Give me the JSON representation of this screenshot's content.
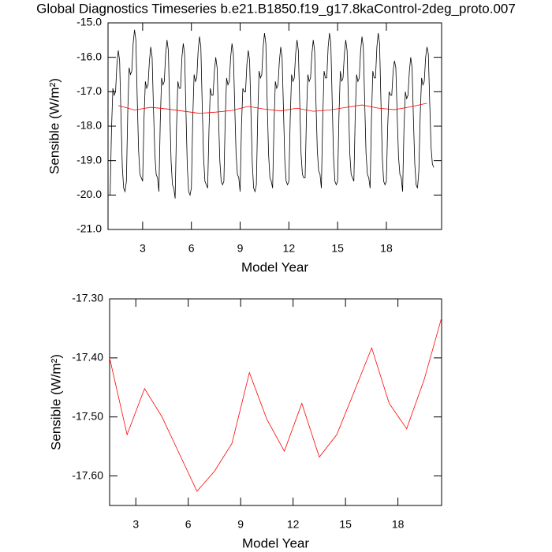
{
  "chart_data": [
    {
      "type": "line",
      "title": "Global Diagnostics Timeseries b.e21.B1850.f19_g17.8kaControl-2deg_proto.007",
      "xlabel": "Model Year",
      "ylabel": "Sensible (W/m²)",
      "xlim": [
        0.87,
        21.4
      ],
      "xticks": [
        3,
        6,
        9,
        12,
        15,
        18
      ],
      "ylim": [
        -21,
        -15
      ],
      "yticks": [
        {
          "value": -21,
          "label": "-21.0"
        },
        {
          "value": -20,
          "label": "-20.0"
        },
        {
          "value": -19,
          "label": "-19.0"
        },
        {
          "value": -18,
          "label": "-18.0"
        },
        {
          "value": -17,
          "label": "-17.0"
        },
        {
          "value": -16,
          "label": "-16.0"
        },
        {
          "value": -15,
          "label": "-15.0"
        }
      ],
      "series": [
        {
          "color": "#000000",
          "x": [
            1,
            1.083,
            1.167,
            1.25,
            1.333,
            1.417,
            1.5,
            1.583,
            1.667,
            1.75,
            1.833,
            1.917,
            2,
            2.083,
            2.167,
            2.25,
            2.333,
            2.417,
            2.5,
            2.583,
            2.667,
            2.75,
            2.833,
            2.917,
            3,
            3.083,
            3.167,
            3.25,
            3.333,
            3.417,
            3.5,
            3.583,
            3.667,
            3.75,
            3.833,
            3.917,
            4,
            4.083,
            4.167,
            4.25,
            4.333,
            4.417,
            4.5,
            4.583,
            4.667,
            4.75,
            4.833,
            4.917,
            5,
            5.083,
            5.167,
            5.25,
            5.333,
            5.417,
            5.5,
            5.583,
            5.667,
            5.75,
            5.833,
            5.917,
            6,
            6.083,
            6.167,
            6.25,
            6.333,
            6.417,
            6.5,
            6.583,
            6.667,
            6.75,
            6.833,
            6.917,
            7,
            7.083,
            7.167,
            7.25,
            7.333,
            7.417,
            7.5,
            7.583,
            7.667,
            7.75,
            7.833,
            7.917,
            8,
            8.083,
            8.167,
            8.25,
            8.333,
            8.417,
            8.5,
            8.583,
            8.667,
            8.75,
            8.833,
            8.917,
            9,
            9.083,
            9.167,
            9.25,
            9.333,
            9.417,
            9.5,
            9.583,
            9.667,
            9.75,
            9.833,
            9.917,
            10,
            10.083,
            10.167,
            10.25,
            10.333,
            10.417,
            10.5,
            10.583,
            10.667,
            10.75,
            10.833,
            10.917,
            11,
            11.083,
            11.167,
            11.25,
            11.333,
            11.417,
            11.5,
            11.583,
            11.667,
            11.75,
            11.833,
            11.917,
            12,
            12.083,
            12.167,
            12.25,
            12.333,
            12.417,
            12.5,
            12.583,
            12.667,
            12.75,
            12.833,
            12.917,
            13,
            13.083,
            13.167,
            13.25,
            13.333,
            13.417,
            13.5,
            13.583,
            13.667,
            13.75,
            13.833,
            13.917,
            14,
            14.083,
            14.167,
            14.25,
            14.333,
            14.417,
            14.5,
            14.583,
            14.667,
            14.75,
            14.833,
            14.917,
            15,
            15.083,
            15.167,
            15.25,
            15.333,
            15.417,
            15.5,
            15.583,
            15.667,
            15.75,
            15.833,
            15.917,
            16,
            16.083,
            16.167,
            16.25,
            16.333,
            16.417,
            16.5,
            16.583,
            16.667,
            16.75,
            16.833,
            16.917,
            17,
            17.083,
            17.167,
            17.25,
            17.333,
            17.417,
            17.5,
            17.583,
            17.667,
            17.75,
            17.833,
            17.917,
            18,
            18.083,
            18.167,
            18.25,
            18.333,
            18.417,
            18.5,
            18.583,
            18.667,
            18.75,
            18.833,
            18.917,
            19,
            19.083,
            19.167,
            19.25,
            19.333,
            19.417,
            19.5,
            19.583,
            19.667,
            19.75,
            19.833,
            19.917,
            20,
            20.083,
            20.167,
            20.25,
            20.333,
            20.417,
            20.5,
            20.583,
            20.667,
            20.75,
            20.833,
            20.917
          ],
          "values": [
            -20.0,
            -18.1,
            -16.9,
            -17.1,
            -17.0,
            -16.2,
            -15.8,
            -16.1,
            -17.7,
            -19.2,
            -19.8,
            -19.9,
            -19.6,
            -17.6,
            -16.3,
            -16.5,
            -16.4,
            -15.6,
            -15.2,
            -15.5,
            -17.2,
            -18.7,
            -19.4,
            -19.5,
            -19.6,
            -17.8,
            -16.7,
            -16.9,
            -16.8,
            -16.1,
            -15.7,
            -16.0,
            -17.5,
            -18.8,
            -19.4,
            -19.5,
            -19.9,
            -17.9,
            -16.6,
            -16.8,
            -16.7,
            -15.9,
            -15.5,
            -15.8,
            -17.5,
            -19.0,
            -19.7,
            -19.8,
            -20.1,
            -18.1,
            -16.7,
            -16.9,
            -16.9,
            -16.0,
            -15.6,
            -15.9,
            -17.6,
            -19.2,
            -19.9,
            -20.0,
            -19.8,
            -17.8,
            -16.5,
            -16.7,
            -16.6,
            -15.8,
            -15.4,
            -15.7,
            -17.4,
            -18.9,
            -19.6,
            -19.7,
            -19.8,
            -18.1,
            -16.9,
            -17.1,
            -17.1,
            -16.4,
            -16.0,
            -16.3,
            -17.7,
            -19.0,
            -19.6,
            -19.7,
            -19.6,
            -17.8,
            -16.6,
            -16.8,
            -16.7,
            -16.0,
            -15.6,
            -15.9,
            -17.4,
            -18.8,
            -19.4,
            -19.5,
            -19.9,
            -18.0,
            -16.9,
            -17.0,
            -17.0,
            -16.2,
            -15.8,
            -16.1,
            -17.6,
            -19.1,
            -19.8,
            -19.9,
            -19.7,
            -17.7,
            -16.4,
            -16.6,
            -16.5,
            -15.7,
            -15.3,
            -15.6,
            -17.3,
            -18.8,
            -19.5,
            -19.6,
            -19.8,
            -18.0,
            -16.7,
            -16.9,
            -16.8,
            -16.1,
            -15.7,
            -16.0,
            -17.5,
            -19.0,
            -19.6,
            -19.7,
            -19.6,
            -17.8,
            -16.5,
            -16.7,
            -16.6,
            -15.9,
            -15.5,
            -15.8,
            -17.3,
            -18.8,
            -19.4,
            -19.5,
            -19.5,
            -17.7,
            -16.5,
            -16.7,
            -16.6,
            -15.9,
            -15.5,
            -15.8,
            -17.3,
            -18.7,
            -19.3,
            -19.4,
            -19.8,
            -17.8,
            -16.4,
            -16.6,
            -16.6,
            -15.7,
            -15.3,
            -15.6,
            -17.3,
            -18.9,
            -19.6,
            -19.7,
            -19.6,
            -17.7,
            -16.4,
            -16.7,
            -16.6,
            -15.9,
            -15.5,
            -15.8,
            -17.3,
            -18.8,
            -19.4,
            -19.5,
            -19.6,
            -17.7,
            -16.5,
            -16.7,
            -16.6,
            -15.8,
            -15.4,
            -15.7,
            -17.3,
            -18.8,
            -19.4,
            -19.5,
            -19.8,
            -17.8,
            -16.4,
            -16.6,
            -16.6,
            -15.7,
            -15.3,
            -15.6,
            -17.3,
            -18.9,
            -19.6,
            -19.7,
            -19.6,
            -18.0,
            -17.0,
            -17.1,
            -17.1,
            -16.4,
            -16.1,
            -16.3,
            -17.7,
            -18.9,
            -19.4,
            -19.5,
            -19.9,
            -18.1,
            -17.0,
            -17.2,
            -17.1,
            -16.4,
            -16.0,
            -16.3,
            -17.8,
            -19.1,
            -19.7,
            -19.8,
            -19.3,
            -17.7,
            -16.6,
            -16.8,
            -16.7,
            -16.0,
            -15.7,
            -15.9,
            -17.3,
            -18.6,
            -19.1,
            -19.2
          ]
        },
        {
          "color": "#ff0000",
          "x": [
            1.5,
            2.5,
            3.5,
            4.5,
            5.5,
            6.5,
            7.5,
            8.5,
            9.5,
            10.5,
            11.5,
            12.5,
            13.5,
            14.5,
            15.5,
            16.5,
            17.5,
            18.5,
            19.5,
            20.5
          ],
          "values": [
            -17.4,
            -17.53,
            -17.452,
            -17.5,
            -17.563,
            -17.626,
            -17.592,
            -17.545,
            -17.425,
            -17.504,
            -17.558,
            -17.477,
            -17.568,
            -17.53,
            -17.457,
            -17.383,
            -17.477,
            -17.52,
            -17.437,
            -17.332
          ]
        }
      ]
    },
    {
      "type": "line",
      "xlabel": "Model Year",
      "ylabel": "Sensible (W/m²)",
      "xlim": [
        1.5,
        20.5
      ],
      "xticks": [
        3,
        6,
        9,
        12,
        15,
        18
      ],
      "ylim": [
        -17.65,
        -17.3
      ],
      "yticks": [
        {
          "value": -17.6,
          "label": "-17.60"
        },
        {
          "value": -17.5,
          "label": "-17.50"
        },
        {
          "value": -17.4,
          "label": "-17.40"
        },
        {
          "value": -17.3,
          "label": "-17.30"
        }
      ],
      "series": [
        {
          "color": "#ff0000",
          "x": [
            1.5,
            2.5,
            3.5,
            4.5,
            5.5,
            6.5,
            7.5,
            8.5,
            9.5,
            10.5,
            11.5,
            12.5,
            13.5,
            14.5,
            15.5,
            16.5,
            17.5,
            18.5,
            19.5,
            20.5
          ],
          "values": [
            -17.4,
            -17.53,
            -17.452,
            -17.5,
            -17.563,
            -17.626,
            -17.592,
            -17.545,
            -17.425,
            -17.504,
            -17.558,
            -17.477,
            -17.568,
            -17.53,
            -17.457,
            -17.383,
            -17.477,
            -17.52,
            -17.437,
            -17.332
          ]
        }
      ]
    }
  ]
}
